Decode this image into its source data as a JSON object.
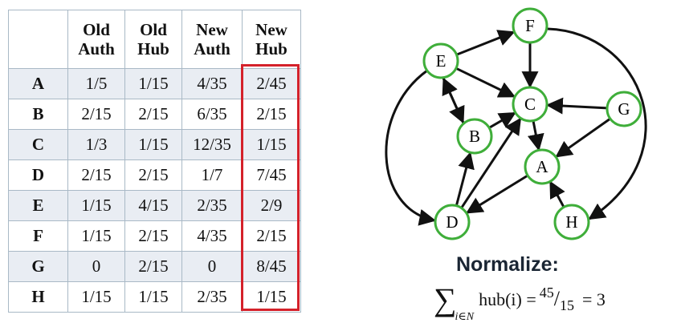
{
  "table": {
    "columns": [
      "",
      "Old\nAuth",
      "Old\nHub",
      "New\nAuth",
      "New\nHub"
    ],
    "rows": [
      {
        "node": "A",
        "old_auth": "1/5",
        "old_hub": "1/15",
        "new_auth": "4/35",
        "new_hub": "2/45"
      },
      {
        "node": "B",
        "old_auth": "2/15",
        "old_hub": "2/15",
        "new_auth": "6/35",
        "new_hub": "2/15"
      },
      {
        "node": "C",
        "old_auth": "1/3",
        "old_hub": "1/15",
        "new_auth": "12/35",
        "new_hub": "1/15"
      },
      {
        "node": "D",
        "old_auth": "2/15",
        "old_hub": "2/15",
        "new_auth": "1/7",
        "new_hub": "7/45"
      },
      {
        "node": "E",
        "old_auth": "1/15",
        "old_hub": "4/15",
        "new_auth": "2/35",
        "new_hub": "2/9"
      },
      {
        "node": "F",
        "old_auth": "1/15",
        "old_hub": "2/15",
        "new_auth": "4/35",
        "new_hub": "2/15"
      },
      {
        "node": "G",
        "old_auth": "0",
        "old_hub": "2/15",
        "new_auth": "0",
        "new_hub": "8/45"
      },
      {
        "node": "H",
        "old_auth": "1/15",
        "old_hub": "1/15",
        "new_auth": "2/35",
        "new_hub": "1/15"
      }
    ],
    "highlight_color": "#d4212a"
  },
  "graph": {
    "node_fill": "#ffffff",
    "node_stroke": "#3fae3a",
    "edge_color": "#111111",
    "nodes": [
      "F",
      "E",
      "C",
      "G",
      "B",
      "A",
      "D",
      "H"
    ],
    "edges": [
      [
        "E",
        "F"
      ],
      [
        "F",
        "C"
      ],
      [
        "E",
        "C"
      ],
      [
        "E",
        "B"
      ],
      [
        "B",
        "E"
      ],
      [
        "B",
        "C"
      ],
      [
        "G",
        "C"
      ],
      [
        "G",
        "A"
      ],
      [
        "C",
        "A"
      ],
      [
        "D",
        "B"
      ],
      [
        "D",
        "C"
      ],
      [
        "A",
        "D"
      ],
      [
        "H",
        "A"
      ],
      [
        "E",
        "D"
      ],
      [
        "F",
        "H"
      ]
    ]
  },
  "normalize": {
    "heading": "Normalize:",
    "sigma": "∑",
    "subscript": "i∈N",
    "expression": "hub(i) =",
    "numerator": "45",
    "denominator": "15",
    "result": "= 3"
  }
}
